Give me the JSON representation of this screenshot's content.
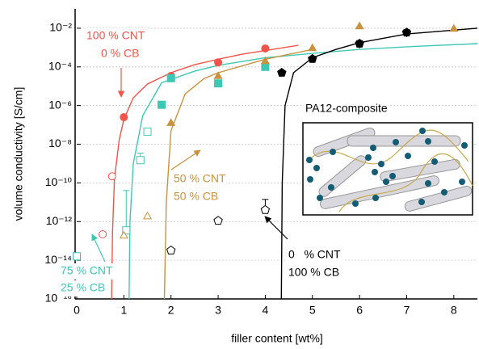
{
  "chart_data": {
    "type": "scatter",
    "x_label": "filler content [wt%]",
    "y_label": "volume conductivity [S/cm]",
    "log_y": true,
    "grid": true,
    "xlim": [
      0,
      8.5
    ],
    "xticks": [
      0,
      1,
      2,
      3,
      4,
      5,
      6,
      7,
      8
    ],
    "ylim": [
      1e-16,
      0.1
    ],
    "yticks": [
      {
        "value": 1e-16,
        "label": "10⁻¹⁶"
      },
      {
        "value": 1e-14,
        "label": "10⁻¹⁴"
      },
      {
        "value": 1e-12,
        "label": "10⁻¹²"
      },
      {
        "value": 1e-10,
        "label": "10⁻¹⁰"
      },
      {
        "value": 1e-08,
        "label": "10⁻⁸"
      },
      {
        "value": 1e-06,
        "label": "10⁻⁶"
      },
      {
        "value": 0.0001,
        "label": "10⁻⁴"
      },
      {
        "value": 0.01,
        "label": "10⁻²"
      }
    ],
    "series": [
      {
        "kind": "fit",
        "color": "#f0544a",
        "x": [
          0.74,
          0.76,
          0.8,
          0.9,
          1.0,
          1.2,
          1.5,
          2,
          2.5,
          3,
          3.5,
          4,
          4.7
        ],
        "values": [
          1e-16,
          3e-13,
          1.6e-10,
          1.6e-08,
          2e-07,
          2.5e-06,
          1.3e-05,
          5e-05,
          0.00013,
          0.00025,
          0.00045,
          0.0007,
          0.0013
        ]
      },
      {
        "kind": "fit",
        "color": "#3ec8b4",
        "x": [
          1.11,
          1.13,
          1.2,
          1.4,
          1.8,
          2.5,
          3,
          4,
          5,
          6,
          7,
          8.5
        ],
        "values": [
          1e-16,
          1e-12,
          1e-09,
          3e-07,
          1.5e-05,
          6e-05,
          0.00012,
          0.0003,
          0.0005,
          0.0008,
          0.0011,
          0.0016
        ]
      },
      {
        "kind": "fit",
        "color": "#c8923e",
        "x": [
          1.86,
          1.9,
          2,
          2.3,
          2.7,
          3,
          4,
          5
        ],
        "values": [
          1e-16,
          1e-11,
          5e-08,
          4e-06,
          2.5e-05,
          5e-05,
          0.00025,
          0.0008
        ]
      },
      {
        "kind": "fit",
        "color": "#000000",
        "x": [
          4.34,
          4.36,
          4.42,
          4.6,
          5,
          5.5,
          6,
          7,
          8,
          8.5
        ],
        "values": [
          1e-16,
          1e-10,
          1e-06,
          5e-05,
          0.0003,
          0.0008,
          0.0018,
          0.005,
          0.008,
          0.01
        ]
      },
      {
        "kind": "points",
        "marker": "circle",
        "filled": true,
        "color": "#f0544a",
        "x": [
          1,
          2,
          3,
          4
        ],
        "values": [
          2.5e-07,
          3.4e-05,
          0.00017,
          0.0009
        ]
      },
      {
        "kind": "points",
        "marker": "circle",
        "filled": false,
        "color": "#f0544a",
        "x": [
          0.75,
          0.55
        ],
        "values": [
          2.2e-10,
          2.2e-13
        ]
      },
      {
        "kind": "points",
        "marker": "square",
        "filled": true,
        "color": "#3ec8b4",
        "x": [
          1.8,
          2,
          3,
          4
        ],
        "values": [
          1.1e-06,
          2.6e-05,
          1.4e-05,
          0.0001
        ]
      },
      {
        "kind": "points",
        "marker": "square",
        "filled": false,
        "color": "#3ec8b4",
        "x": [
          1.5,
          1.35,
          1.05,
          0
        ],
        "values": [
          4.5e-08,
          1.5e-09,
          3.5e-13,
          1.6e-14
        ],
        "errors": [
          null,
          2e-09,
          4e-11,
          null
        ]
      },
      {
        "kind": "points",
        "marker": "triangle",
        "filled": true,
        "color": "#c8923e",
        "x": [
          2,
          3,
          4,
          5,
          6,
          8
        ],
        "values": [
          1.2e-07,
          3.2e-05,
          0.00019,
          0.0009,
          0.012,
          0.009
        ]
      },
      {
        "kind": "points",
        "marker": "triangle",
        "filled": false,
        "color": "#c8923e",
        "x": [
          1.5,
          1
        ],
        "values": [
          1.8e-12,
          1.8e-13
        ]
      },
      {
        "kind": "points",
        "marker": "pentagon",
        "filled": true,
        "color": "#000000",
        "x": [
          4.35,
          5,
          6,
          7
        ],
        "values": [
          5e-05,
          0.00026,
          0.0016,
          0.006
        ],
        "errors": [
          null,
          null,
          0.0007,
          0.0025
        ]
      },
      {
        "kind": "points",
        "marker": "pentagon",
        "filled": false,
        "color": "#000000",
        "x": [
          2,
          3,
          4
        ],
        "values": [
          3.2e-14,
          1.1e-12,
          4e-12
        ],
        "errors": [
          null,
          null,
          1e-11
        ]
      }
    ],
    "annotations": [
      {
        "text": "100 % CNT",
        "color": "#f0544a"
      },
      {
        "text": "0 % CB",
        "color": "#f0544a"
      },
      {
        "text": "50 % CNT",
        "color": "#c8923e"
      },
      {
        "text": "50 % CB",
        "color": "#c8923e"
      },
      {
        "text": "75 % CNT",
        "color": "#3ec8b4"
      },
      {
        "text": "25 % CB",
        "color": "#3ec8b4"
      },
      {
        "text": "0   % CNT",
        "color": "#000000"
      },
      {
        "text": "100 % CB",
        "color": "#000000"
      },
      {
        "text": "PA12-composite",
        "color": "#000000"
      }
    ]
  }
}
